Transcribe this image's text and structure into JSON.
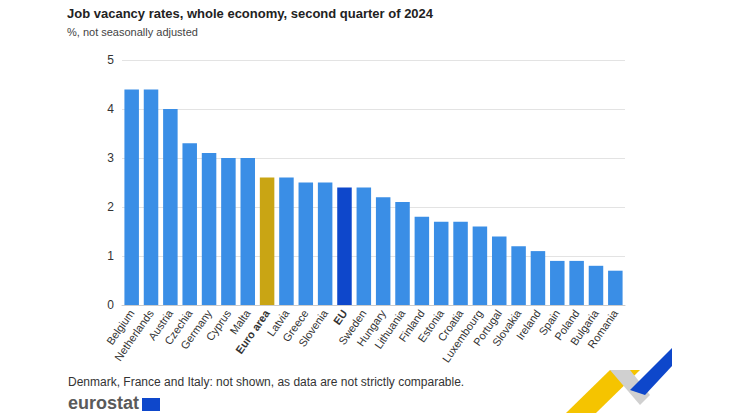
{
  "chart_data": {
    "type": "bar",
    "title": "Job vacancy rates, whole economy, second quarter of 2024",
    "subtitle": "%, not seasonally adjusted",
    "footnote": "Denmark, France and Italy: not shown, as data are not strictly comparable.",
    "source": "eurostat",
    "categories": [
      "Belgium",
      "Netherlands",
      "Austria",
      "Czechia",
      "Germany",
      "Cyprus",
      "Malta",
      "Euro area",
      "Latvia",
      "Greece",
      "Slovenia",
      "EU",
      "Sweden",
      "Hungary",
      "Lithuania",
      "Finland",
      "Estonia",
      "Croatia",
      "Luxembourg",
      "Portugal",
      "Slovakia",
      "Ireland",
      "Spain",
      "Poland",
      "Bulgaria",
      "Romania"
    ],
    "values": [
      4.4,
      4.4,
      4.0,
      3.3,
      3.1,
      3.0,
      3.0,
      2.6,
      2.6,
      2.5,
      2.5,
      2.4,
      2.4,
      2.2,
      2.1,
      1.8,
      1.7,
      1.7,
      1.6,
      1.4,
      1.2,
      1.1,
      0.9,
      0.9,
      0.8,
      0.7
    ],
    "colors": [
      "#3a8ee6",
      "#3a8ee6",
      "#3a8ee6",
      "#3a8ee6",
      "#3a8ee6",
      "#3a8ee6",
      "#3a8ee6",
      "#c9a514",
      "#3a8ee6",
      "#3a8ee6",
      "#3a8ee6",
      "#0e47cb",
      "#3a8ee6",
      "#3a8ee6",
      "#3a8ee6",
      "#3a8ee6",
      "#3a8ee6",
      "#3a8ee6",
      "#3a8ee6",
      "#3a8ee6",
      "#3a8ee6",
      "#3a8ee6",
      "#3a8ee6",
      "#3a8ee6",
      "#3a8ee6",
      "#3a8ee6"
    ],
    "ylim": [
      0,
      5
    ],
    "yticks": [
      0,
      1,
      2,
      3,
      4,
      5
    ],
    "grid": true
  }
}
